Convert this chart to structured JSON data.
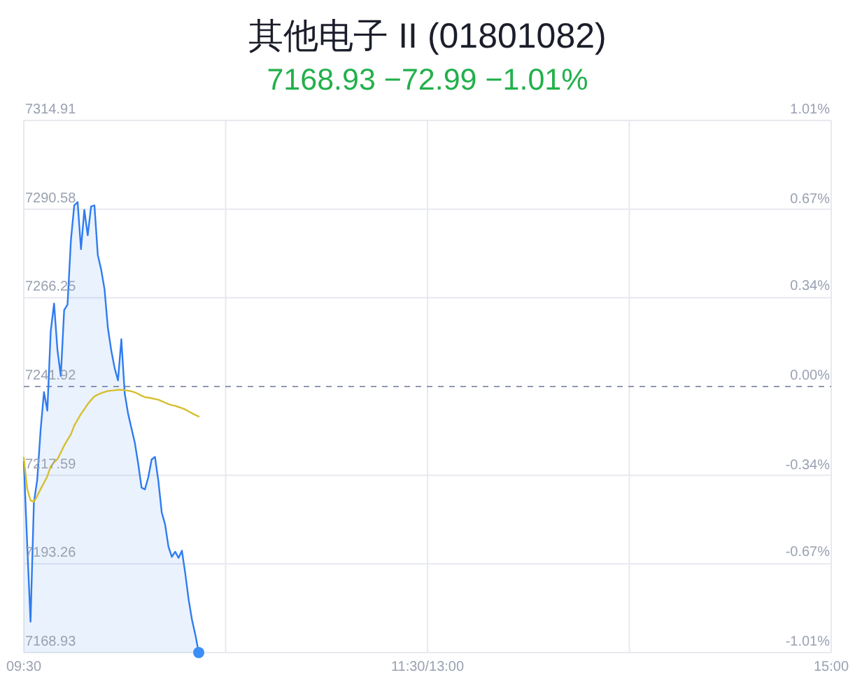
{
  "chart_data": {
    "type": "area",
    "title": "其他电子 II (01801082)",
    "subtitle": "7168.93 −72.99 −1.01%",
    "categories": [
      "09:30",
      null,
      null,
      null,
      null,
      null,
      null,
      null,
      null,
      null,
      null,
      null,
      null,
      null,
      null,
      null,
      null,
      null,
      null,
      null,
      null,
      null,
      null,
      null,
      null,
      null,
      null,
      null,
      null,
      null,
      null,
      null,
      null,
      null,
      null,
      null,
      null,
      null,
      null,
      null,
      null,
      null,
      null,
      null,
      null,
      null,
      null,
      null,
      null,
      null,
      null,
      null,
      null,
      null,
      null,
      null,
      null,
      null,
      null,
      null,
      null,
      null,
      null,
      null,
      null,
      null,
      null,
      null,
      null,
      null,
      null,
      null,
      null,
      null,
      null,
      null,
      null,
      null,
      null,
      null,
      null,
      null,
      null,
      null,
      null,
      null,
      null,
      null,
      null,
      null,
      null,
      null,
      null,
      null,
      null,
      null,
      null,
      null,
      null,
      null,
      null,
      null,
      null,
      null,
      null,
      null,
      null,
      null,
      null,
      null,
      null,
      null,
      null,
      null,
      null,
      null,
      null,
      null,
      null,
      null,
      "11:30/13:00",
      null,
      null,
      null,
      null,
      null,
      null,
      null,
      null,
      null,
      null,
      null,
      null,
      null,
      null,
      null,
      null,
      null,
      null,
      null,
      null,
      null,
      null,
      null,
      null,
      null,
      null,
      null,
      null,
      null,
      null,
      null,
      null,
      null,
      null,
      null,
      null,
      null,
      null,
      null,
      null,
      null,
      null,
      null,
      null,
      null,
      null,
      null,
      null,
      null,
      null,
      null,
      null,
      null,
      null,
      null,
      null,
      null,
      null,
      null,
      null,
      null,
      null,
      null,
      null,
      null,
      null,
      null,
      null,
      null,
      null,
      null,
      null,
      null,
      null,
      null,
      null,
      null,
      null,
      null,
      null,
      null,
      null,
      null,
      null,
      null,
      null,
      null,
      null,
      null,
      null,
      null,
      null,
      null,
      null,
      null,
      null,
      null,
      null,
      null,
      null,
      null,
      null,
      null,
      null,
      null,
      null,
      null,
      null,
      null,
      null,
      null,
      null,
      null,
      null,
      null,
      null,
      null,
      null,
      null,
      "15:00"
    ],
    "series": [
      {
        "color": "#2f7cf0",
        "values": [
          7221.4,
          7199.0,
          7177.4,
          7210.0,
          7216.4,
          7230.0,
          7240.4,
          7235.3,
          7257.0,
          7264.7,
          7252.0,
          7244.8,
          7262.9,
          7264.4,
          7282.0,
          7291.6,
          7292.5,
          7279.6,
          7290.4,
          7283.4,
          7291.3,
          7291.6,
          7278.0,
          7274.0,
          7268.6,
          7258.0,
          7251.8,
          7247.0,
          7243.6,
          7254.9,
          7240.0,
          7234.5,
          7230.5,
          7226.5,
          7220.8,
          7214.2,
          7213.7,
          7217.0,
          7221.9,
          7222.6,
          7216.0,
          7207.4,
          7204.1,
          7198.0,
          7195.2,
          7196.6,
          7194.9,
          7196.9,
          7190.6,
          7183.5,
          7177.9,
          7173.8,
          7168.93,
          null,
          null,
          null,
          null,
          null,
          null,
          null,
          null,
          null,
          null,
          null,
          null,
          null,
          null,
          null,
          null,
          null,
          null,
          null,
          null,
          null,
          null,
          null,
          null,
          null,
          null,
          null,
          null,
          null,
          null,
          null,
          null,
          null,
          null,
          null,
          null,
          null,
          null,
          null,
          null,
          null,
          null,
          null,
          null,
          null,
          null,
          null,
          null,
          null,
          null,
          null,
          null,
          null,
          null,
          null,
          null,
          null,
          null,
          null,
          null,
          null,
          null,
          null,
          null,
          null,
          null,
          null,
          null,
          null,
          null,
          null,
          null,
          null,
          null,
          null,
          null,
          null,
          null,
          null,
          null,
          null,
          null,
          null,
          null,
          null,
          null,
          null,
          null,
          null,
          null,
          null,
          null,
          null,
          null,
          null,
          null,
          null,
          null,
          null,
          null,
          null,
          null,
          null,
          null,
          null,
          null,
          null,
          null,
          null,
          null,
          null,
          null,
          null,
          null,
          null,
          null,
          null,
          null,
          null,
          null,
          null,
          null,
          null,
          null,
          null,
          null,
          null,
          null,
          null,
          null,
          null,
          null,
          null,
          null,
          null,
          null,
          null,
          null,
          null,
          null,
          null,
          null,
          null,
          null,
          null,
          null,
          null,
          null,
          null,
          null,
          null,
          null,
          null,
          null,
          null,
          null,
          null,
          null,
          null,
          null,
          null,
          null,
          null,
          null,
          null,
          null,
          null,
          null,
          null,
          null,
          null,
          null,
          null,
          null,
          null,
          null,
          null,
          null,
          null,
          null,
          null,
          null,
          null,
          null,
          null,
          null,
          null,
          null
        ]
      },
      {
        "type": "line",
        "color": "#d6bf2e",
        "values": [
          7222.4,
          7213.9,
          7210.7,
          7210.3,
          7211.9,
          7213.8,
          7215.5,
          7217.3,
          7220.0,
          7221.1,
          7222.0,
          7223.8,
          7225.7,
          7227.3,
          7228.8,
          7231.2,
          7232.8,
          7234.4,
          7235.7,
          7237.1,
          7238.2,
          7239.2,
          7239.7,
          7240.1,
          7240.4,
          7240.7,
          7240.8,
          7240.9,
          7241.0,
          7241.0,
          7240.9,
          7240.8,
          7240.6,
          7240.3,
          7239.9,
          7239.4,
          7239.0,
          7238.9,
          7238.7,
          7238.5,
          7238.3,
          7237.9,
          7237.5,
          7237.1,
          7236.8,
          7236.6,
          7236.3,
          7236.0,
          7235.6,
          7235.1,
          7234.6,
          7234.1,
          7233.7,
          null,
          null,
          null,
          null,
          null,
          null,
          null,
          null,
          null,
          null,
          null,
          null,
          null,
          null,
          null,
          null,
          null,
          null,
          null,
          null,
          null,
          null,
          null,
          null,
          null,
          null,
          null,
          null,
          null,
          null,
          null,
          null,
          null,
          null,
          null,
          null,
          null,
          null,
          null,
          null,
          null,
          null,
          null,
          null,
          null,
          null,
          null,
          null,
          null,
          null,
          null,
          null,
          null,
          null,
          null,
          null,
          null,
          null,
          null,
          null,
          null,
          null,
          null,
          null,
          null,
          null,
          null,
          null,
          null,
          null,
          null,
          null,
          null,
          null,
          null,
          null,
          null,
          null,
          null,
          null,
          null,
          null,
          null,
          null,
          null,
          null,
          null,
          null,
          null,
          null,
          null,
          null,
          null,
          null,
          null,
          null,
          null,
          null,
          null,
          null,
          null,
          null,
          null,
          null,
          null,
          null,
          null,
          null,
          null,
          null,
          null,
          null,
          null,
          null,
          null,
          null,
          null,
          null,
          null,
          null,
          null,
          null,
          null,
          null,
          null,
          null,
          null,
          null,
          null,
          null,
          null,
          null,
          null,
          null,
          null,
          null,
          null,
          null,
          null,
          null,
          null,
          null,
          null,
          null,
          null,
          null,
          null,
          null,
          null,
          null,
          null,
          null,
          null,
          null,
          null,
          null,
          null,
          null,
          null,
          null,
          null,
          null,
          null,
          null,
          null,
          null,
          null,
          null,
          null,
          null,
          null,
          null,
          null,
          null,
          null,
          null,
          null,
          null,
          null,
          null,
          null,
          null,
          null,
          null,
          null,
          null,
          null,
          null
        ]
      },
      {
        "type": "scatter",
        "color": "#3a8ef6",
        "marker": "circle",
        "values": [
          null,
          null,
          null,
          null,
          null,
          null,
          null,
          null,
          null,
          null,
          null,
          null,
          null,
          null,
          null,
          null,
          null,
          null,
          null,
          null,
          null,
          null,
          null,
          null,
          null,
          null,
          null,
          null,
          null,
          null,
          null,
          null,
          null,
          null,
          null,
          null,
          null,
          null,
          null,
          null,
          null,
          null,
          null,
          null,
          null,
          null,
          null,
          null,
          null,
          null,
          null,
          null,
          7168.93,
          null,
          null,
          null,
          null,
          null,
          null,
          null,
          null,
          null,
          null,
          null,
          null,
          null,
          null,
          null,
          null,
          null,
          null,
          null,
          null,
          null,
          null,
          null,
          null,
          null,
          null,
          null,
          null,
          null,
          null,
          null,
          null,
          null,
          null,
          null,
          null,
          null,
          null,
          null,
          null,
          null,
          null,
          null,
          null,
          null,
          null,
          null,
          null,
          null,
          null,
          null,
          null,
          null,
          null,
          null,
          null,
          null,
          null,
          null,
          null,
          null,
          null,
          null,
          null,
          null,
          null,
          null,
          null,
          null,
          null,
          null,
          null,
          null,
          null,
          null,
          null,
          null,
          null,
          null,
          null,
          null,
          null,
          null,
          null,
          null,
          null,
          null,
          null,
          null,
          null,
          null,
          null,
          null,
          null,
          null,
          null,
          null,
          null,
          null,
          null,
          null,
          null,
          null,
          null,
          null,
          null,
          null,
          null,
          null,
          null,
          null,
          null,
          null,
          null,
          null,
          null,
          null,
          null,
          null,
          null,
          null,
          null,
          null,
          null,
          null,
          null,
          null,
          null,
          null,
          null,
          null,
          null,
          null,
          null,
          null,
          null,
          null,
          null,
          null,
          null,
          null,
          null,
          null,
          null,
          null,
          null,
          null,
          null,
          null,
          null,
          null,
          null,
          null,
          null,
          null,
          null,
          null,
          null,
          null,
          null,
          null,
          null,
          null,
          null,
          null,
          null,
          null,
          null,
          null,
          null,
          null,
          null,
          null,
          null,
          null,
          null,
          null,
          null,
          null,
          null,
          null,
          null,
          null,
          null,
          null,
          null,
          null,
          null
        ]
      }
    ],
    "ylim": [
      7168.93,
      7314.91
    ],
    "yticks": [
      7168.93,
      7193.26,
      7217.59,
      7241.92,
      7266.25,
      7290.58,
      7314.91
    ],
    "y2lim": [
      -1.01,
      1.01
    ],
    "y2ticks": [
      {
        "value": -1.01,
        "label": "-1.01%"
      },
      {
        "value": -0.67,
        "label": "-0.67%"
      },
      {
        "value": -0.34,
        "label": "-0.34%"
      },
      {
        "value": 0,
        "label": "0.00%"
      },
      {
        "value": 0.34,
        "label": "0.34%"
      },
      {
        "value": 0.67,
        "label": "0.67%"
      },
      {
        "value": 1.01,
        "label": "1.01%"
      }
    ],
    "ref_lines": [
      {
        "axis": "y",
        "value": 7241.92,
        "line_style": "dashed",
        "color": "#8f99b0"
      }
    ],
    "grid": true
  }
}
